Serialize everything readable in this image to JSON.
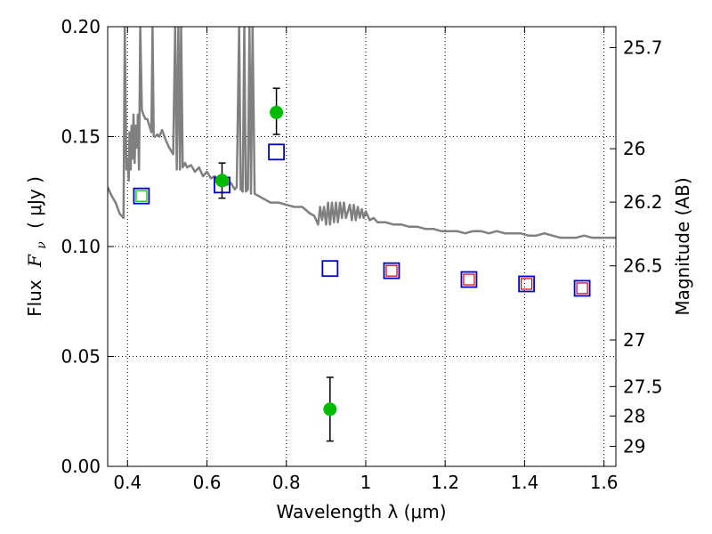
{
  "chart_data": {
    "type": "scatter",
    "xlabel": "Wavelength  λ (μm)",
    "ylabel_prefix": "Flux",
    "ylabel_symbol": "F",
    "ylabel_subscript": "ν",
    "ylabel_unit": "( μJy )",
    "y2label": "Magnitude (AB)",
    "xlim": [
      0.35,
      1.63
    ],
    "ylim": [
      0.0,
      0.2
    ],
    "grid": true,
    "x_ticks": [
      {
        "value": 0.4,
        "label": "0.4"
      },
      {
        "value": 0.6,
        "label": "0.6"
      },
      {
        "value": 0.8,
        "label": "0.8"
      },
      {
        "value": 1.0,
        "label": "1"
      },
      {
        "value": 1.2,
        "label": "1.2"
      },
      {
        "value": 1.4,
        "label": "1.4"
      },
      {
        "value": 1.6,
        "label": "1.6"
      }
    ],
    "y_ticks": [
      {
        "value": 0.0,
        "label": "0.00"
      },
      {
        "value": 0.05,
        "label": "0.05"
      },
      {
        "value": 0.1,
        "label": "0.10"
      },
      {
        "value": 0.15,
        "label": "0.15"
      },
      {
        "value": 0.2,
        "label": "0.20"
      }
    ],
    "y2_ticks": [
      {
        "flux": 0.1905,
        "label": "25.7"
      },
      {
        "flux": 0.1445,
        "label": "26"
      },
      {
        "flux": 0.1202,
        "label": "26.2"
      },
      {
        "flux": 0.0912,
        "label": "26.5"
      },
      {
        "flux": 0.0575,
        "label": "27"
      },
      {
        "flux": 0.0363,
        "label": "27.5"
      },
      {
        "flux": 0.0229,
        "label": "28"
      },
      {
        "flux": 0.0091,
        "label": "29"
      }
    ],
    "colors": {
      "model": "#808080",
      "observed": "#00bb00",
      "errorbar": "#000000",
      "model_band": "#0000cc",
      "inner_green": "#00bb00",
      "inner_red": "#cc0000"
    },
    "observed_points": [
      {
        "x": 0.638,
        "y": 0.13,
        "yerr_low": 0.008,
        "yerr_high": 0.008
      },
      {
        "x": 0.775,
        "y": 0.161,
        "yerr_low": 0.01,
        "yerr_high": 0.011
      },
      {
        "x": 0.91,
        "y": 0.026,
        "yerr_low": 0.0145,
        "yerr_high": 0.0145
      }
    ],
    "model_band_points": [
      {
        "x": 0.435,
        "y": 0.123,
        "inner": "green"
      },
      {
        "x": 0.638,
        "y": 0.128,
        "inner": "none"
      },
      {
        "x": 0.775,
        "y": 0.143,
        "inner": "none"
      },
      {
        "x": 0.91,
        "y": 0.09,
        "inner": "none"
      },
      {
        "x": 1.065,
        "y": 0.089,
        "inner": "red"
      },
      {
        "x": 1.26,
        "y": 0.085,
        "inner": "red"
      },
      {
        "x": 1.405,
        "y": 0.083,
        "inner": "red"
      },
      {
        "x": 1.545,
        "y": 0.081,
        "inner": "red"
      }
    ],
    "model_spectrum": [
      [
        0.35,
        0.127
      ],
      [
        0.36,
        0.123
      ],
      [
        0.37,
        0.12
      ],
      [
        0.38,
        0.115
      ],
      [
        0.39,
        0.113
      ],
      [
        0.393,
        0.2
      ],
      [
        0.397,
        0.135
      ],
      [
        0.4,
        0.14
      ],
      [
        0.403,
        0.13
      ],
      [
        0.405,
        0.152
      ],
      [
        0.408,
        0.135
      ],
      [
        0.41,
        0.155
      ],
      [
        0.413,
        0.14
      ],
      [
        0.415,
        0.16
      ],
      [
        0.418,
        0.138
      ],
      [
        0.42,
        0.155
      ],
      [
        0.424,
        0.145
      ],
      [
        0.426,
        0.16
      ],
      [
        0.429,
        0.135
      ],
      [
        0.432,
        0.2
      ],
      [
        0.436,
        0.162
      ],
      [
        0.44,
        0.16
      ],
      [
        0.445,
        0.158
      ],
      [
        0.45,
        0.158
      ],
      [
        0.455,
        0.155
      ],
      [
        0.46,
        0.152
      ],
      [
        0.463,
        0.2
      ],
      [
        0.466,
        0.15
      ],
      [
        0.47,
        0.15
      ],
      [
        0.475,
        0.151
      ],
      [
        0.48,
        0.15
      ],
      [
        0.487,
        0.153
      ],
      [
        0.495,
        0.149
      ],
      [
        0.505,
        0.145
      ],
      [
        0.515,
        0.142
      ],
      [
        0.52,
        0.2
      ],
      [
        0.524,
        0.135
      ],
      [
        0.528,
        0.2
      ],
      [
        0.532,
        0.135
      ],
      [
        0.535,
        0.2
      ],
      [
        0.539,
        0.136
      ],
      [
        0.545,
        0.138
      ],
      [
        0.55,
        0.136
      ],
      [
        0.56,
        0.137
      ],
      [
        0.57,
        0.134
      ],
      [
        0.58,
        0.136
      ],
      [
        0.59,
        0.132
      ],
      [
        0.6,
        0.134
      ],
      [
        0.61,
        0.131
      ],
      [
        0.62,
        0.132
      ],
      [
        0.63,
        0.129
      ],
      [
        0.64,
        0.13
      ],
      [
        0.65,
        0.128
      ],
      [
        0.66,
        0.129
      ],
      [
        0.67,
        0.126
      ],
      [
        0.675,
        0.127
      ],
      [
        0.681,
        0.2
      ],
      [
        0.685,
        0.126
      ],
      [
        0.69,
        0.125
      ],
      [
        0.694,
        0.2
      ],
      [
        0.698,
        0.125
      ],
      [
        0.703,
        0.126
      ],
      [
        0.707,
        0.2
      ],
      [
        0.711,
        0.124
      ],
      [
        0.715,
        0.2
      ],
      [
        0.72,
        0.124
      ],
      [
        0.74,
        0.122
      ],
      [
        0.76,
        0.12
      ],
      [
        0.78,
        0.12
      ],
      [
        0.8,
        0.119
      ],
      [
        0.82,
        0.118
      ],
      [
        0.84,
        0.118
      ],
      [
        0.86,
        0.115
      ],
      [
        0.87,
        0.114
      ],
      [
        0.88,
        0.11
      ],
      [
        0.885,
        0.118
      ],
      [
        0.89,
        0.112
      ],
      [
        0.895,
        0.118
      ],
      [
        0.9,
        0.11
      ],
      [
        0.905,
        0.12
      ],
      [
        0.91,
        0.11
      ],
      [
        0.915,
        0.12
      ],
      [
        0.92,
        0.111
      ],
      [
        0.925,
        0.12
      ],
      [
        0.93,
        0.111
      ],
      [
        0.935,
        0.12
      ],
      [
        0.94,
        0.113
      ],
      [
        0.945,
        0.12
      ],
      [
        0.95,
        0.113
      ],
      [
        0.96,
        0.119
      ],
      [
        0.965,
        0.112
      ],
      [
        0.97,
        0.119
      ],
      [
        0.975,
        0.112
      ],
      [
        0.98,
        0.118
      ],
      [
        0.985,
        0.113
      ],
      [
        0.99,
        0.117
      ],
      [
        0.995,
        0.113
      ],
      [
        1.0,
        0.116
      ],
      [
        1.005,
        0.114
      ],
      [
        1.01,
        0.112
      ],
      [
        1.02,
        0.113
      ],
      [
        1.03,
        0.111
      ],
      [
        1.05,
        0.111
      ],
      [
        1.07,
        0.11
      ],
      [
        1.09,
        0.11
      ],
      [
        1.11,
        0.109
      ],
      [
        1.13,
        0.109
      ],
      [
        1.15,
        0.108
      ],
      [
        1.17,
        0.108
      ],
      [
        1.19,
        0.107
      ],
      [
        1.21,
        0.107
      ],
      [
        1.23,
        0.107
      ],
      [
        1.25,
        0.106
      ],
      [
        1.27,
        0.107
      ],
      [
        1.29,
        0.107
      ],
      [
        1.31,
        0.106
      ],
      [
        1.33,
        0.107
      ],
      [
        1.35,
        0.106
      ],
      [
        1.37,
        0.106
      ],
      [
        1.39,
        0.106
      ],
      [
        1.41,
        0.105
      ],
      [
        1.43,
        0.105
      ],
      [
        1.45,
        0.106
      ],
      [
        1.47,
        0.105
      ],
      [
        1.49,
        0.104
      ],
      [
        1.51,
        0.104
      ],
      [
        1.53,
        0.104
      ],
      [
        1.55,
        0.105
      ],
      [
        1.57,
        0.104
      ],
      [
        1.59,
        0.104
      ],
      [
        1.61,
        0.104
      ],
      [
        1.63,
        0.104
      ]
    ]
  }
}
